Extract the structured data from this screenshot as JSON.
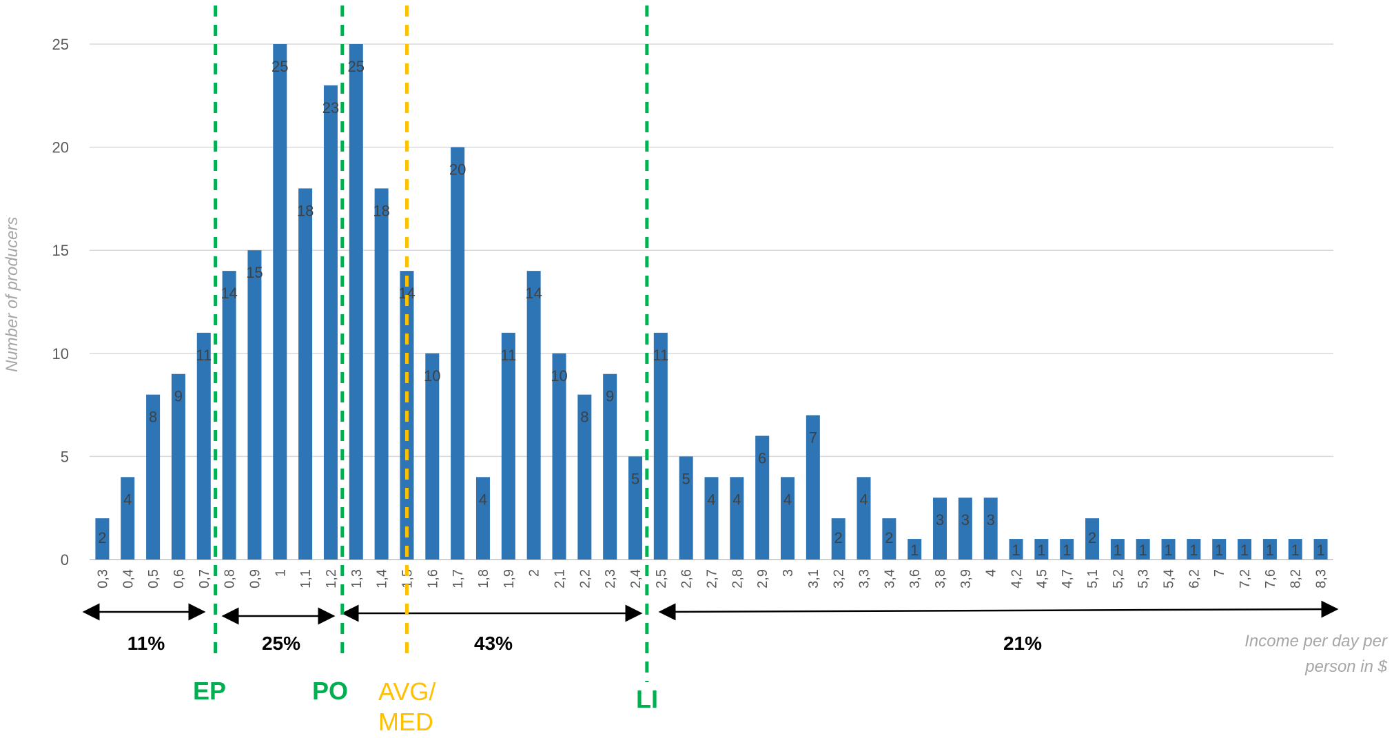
{
  "chart_data": {
    "type": "bar",
    "ylabel": "Number of producers",
    "xlabel": "Income per day per person in $",
    "ylim": [
      0,
      25
    ],
    "yticks": [
      0,
      5,
      10,
      15,
      20,
      25
    ],
    "grid": true,
    "bar_color": "#2e75b6",
    "categories": [
      "0,3",
      "0,4",
      "0,5",
      "0,6",
      "0,7",
      "0,8",
      "0,9",
      "1",
      "1,1",
      "1,2",
      "1,3",
      "1,4",
      "1,5",
      "1,6",
      "1,7",
      "1,8",
      "1,9",
      "2",
      "2,1",
      "2,2",
      "2,3",
      "2,4",
      "2,5",
      "2,6",
      "2,7",
      "2,8",
      "2,9",
      "3",
      "3,1",
      "3,2",
      "3,3",
      "3,4",
      "3,6",
      "3,8",
      "3,9",
      "4",
      "4,2",
      "4,5",
      "4,7",
      "5,1",
      "5,2",
      "5,3",
      "5,4",
      "6,2",
      "7",
      "7,2",
      "7,6",
      "8,2",
      "8,3"
    ],
    "values": [
      2,
      4,
      8,
      9,
      11,
      14,
      15,
      25,
      18,
      23,
      25,
      18,
      14,
      10,
      20,
      4,
      11,
      14,
      10,
      8,
      9,
      5,
      11,
      5,
      4,
      4,
      6,
      4,
      7,
      2,
      4,
      2,
      1,
      3,
      3,
      3,
      1,
      1,
      1,
      2,
      1,
      1,
      1,
      1,
      1,
      1,
      1,
      1,
      1
    ],
    "markers": [
      {
        "label": "EP",
        "color": "#00b050"
      },
      {
        "label": "PO",
        "color": "#00b050"
      },
      {
        "label": "AVG/ MED",
        "color": "#ffc000"
      },
      {
        "label": "LI",
        "color": "#00b050"
      }
    ],
    "ranges": [
      {
        "label": "11%"
      },
      {
        "label": "25%"
      },
      {
        "label": "43%"
      },
      {
        "label": "21%"
      }
    ]
  }
}
